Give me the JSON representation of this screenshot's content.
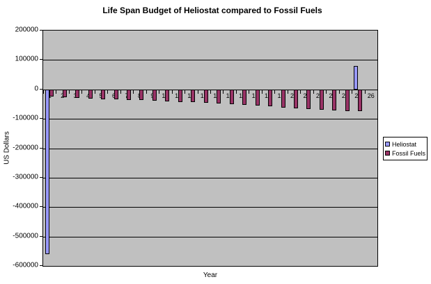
{
  "title": "Life Span Budget of Heliostat compared to Fossil Fuels",
  "chart_data": {
    "type": "bar",
    "title": "Life Span Budget of Heliostat compared to Fossil Fuels",
    "xlabel": "Year",
    "ylabel": "US Dollars",
    "ylim": [
      -600000,
      200000
    ],
    "ytick_interval": 100000,
    "ytick_labels": [
      "200000",
      "100000",
      "0",
      "-100000",
      "-200000",
      "-300000",
      "-400000",
      "-500000",
      "-600000"
    ],
    "grid": true,
    "plot_bg": "#C0C0C0",
    "legend_position": "right",
    "categories": [
      "1",
      "2",
      "3",
      "4",
      "5",
      "6",
      "7",
      "8",
      "9",
      "10",
      "11",
      "12",
      "13",
      "14",
      "15",
      "16",
      "17",
      "18",
      "19",
      "20",
      "21",
      "22",
      "23",
      "24",
      "25",
      "26"
    ],
    "series": [
      {
        "name": "Heliostat",
        "color": "#9999FF",
        "values": [
          -560000,
          0,
          0,
          0,
          0,
          0,
          0,
          0,
          0,
          0,
          0,
          0,
          0,
          0,
          0,
          0,
          0,
          0,
          0,
          0,
          0,
          0,
          0,
          0,
          80000,
          0
        ]
      },
      {
        "name": "Fossil Fuels",
        "color": "#993366",
        "values": [
          -25000,
          -27000,
          -29000,
          -31000,
          -33000,
          -34000,
          -36000,
          -37000,
          -39000,
          -40000,
          -42000,
          -44000,
          -46000,
          -48000,
          -50000,
          -53000,
          -55000,
          -58000,
          -61000,
          -64000,
          -67000,
          -69000,
          -71000,
          -73000,
          -74000,
          0
        ]
      }
    ]
  },
  "legend": {
    "items": [
      {
        "label": "Heliostat",
        "color": "#9999FF"
      },
      {
        "label": "Fossil Fuels",
        "color": "#993366"
      }
    ]
  }
}
